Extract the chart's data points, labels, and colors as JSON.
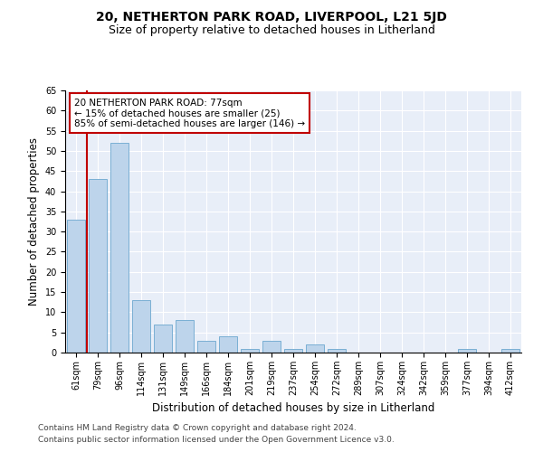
{
  "title": "20, NETHERTON PARK ROAD, LIVERPOOL, L21 5JD",
  "subtitle": "Size of property relative to detached houses in Litherland",
  "xlabel": "Distribution of detached houses by size in Litherland",
  "ylabel": "Number of detached properties",
  "categories": [
    "61sqm",
    "79sqm",
    "96sqm",
    "114sqm",
    "131sqm",
    "149sqm",
    "166sqm",
    "184sqm",
    "201sqm",
    "219sqm",
    "237sqm",
    "254sqm",
    "272sqm",
    "289sqm",
    "307sqm",
    "324sqm",
    "342sqm",
    "359sqm",
    "377sqm",
    "394sqm",
    "412sqm"
  ],
  "values": [
    33,
    43,
    52,
    13,
    7,
    8,
    3,
    4,
    1,
    3,
    1,
    2,
    1,
    0,
    0,
    0,
    0,
    0,
    1,
    0,
    1
  ],
  "bar_color": "#bdd4eb",
  "bar_edge_color": "#7aafd4",
  "highlight_color": "#c00000",
  "vline_x": 0.5,
  "annotation_title": "20 NETHERTON PARK ROAD: 77sqm",
  "annotation_line1": "← 15% of detached houses are smaller (25)",
  "annotation_line2": "85% of semi-detached houses are larger (146) →",
  "ylim": [
    0,
    65
  ],
  "yticks": [
    0,
    5,
    10,
    15,
    20,
    25,
    30,
    35,
    40,
    45,
    50,
    55,
    60,
    65
  ],
  "footer1": "Contains HM Land Registry data © Crown copyright and database right 2024.",
  "footer2": "Contains public sector information licensed under the Open Government Licence v3.0.",
  "bg_color": "#e8eef8",
  "grid_color": "#ffffff",
  "title_fontsize": 10,
  "subtitle_fontsize": 9,
  "axis_label_fontsize": 8.5,
  "tick_fontsize": 7,
  "annotation_fontsize": 7.5,
  "footer_fontsize": 6.5
}
